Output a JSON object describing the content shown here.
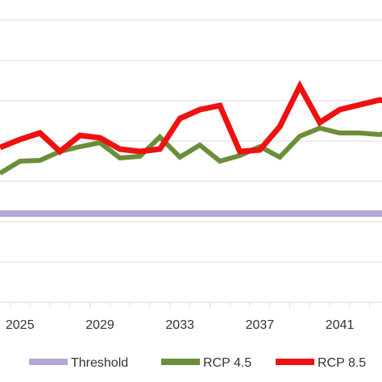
{
  "chart_data": {
    "type": "line",
    "x": [
      2024,
      2025,
      2026,
      2027,
      2028,
      2029,
      2030,
      2031,
      2032,
      2033,
      2034,
      2035,
      2036,
      2037,
      2038,
      2039,
      2040,
      2041,
      2042,
      2043,
      2044
    ],
    "x_tick_labels": [
      "2025",
      "2029",
      "2033",
      "2037",
      "2041"
    ],
    "x_tick_values": [
      2025,
      2029,
      2033,
      2037,
      2041
    ],
    "series": [
      {
        "name": "Threshold",
        "color": "#b4a7d6",
        "values": [
          2.1,
          2.1,
          2.1,
          2.1,
          2.1,
          2.1,
          2.1,
          2.1,
          2.1,
          2.1,
          2.1,
          2.1,
          2.1,
          2.1,
          2.1,
          2.1,
          2.1,
          2.1,
          2.1,
          2.1,
          2.1
        ]
      },
      {
        "name": "RCP 4.5",
        "color": "#6b8e3a",
        "values": [
          2.6,
          2.75,
          2.76,
          2.87,
          2.93,
          2.98,
          2.79,
          2.81,
          3.05,
          2.8,
          2.95,
          2.75,
          2.82,
          2.93,
          2.8,
          3.06,
          3.16,
          3.1,
          3.1,
          3.08,
          3.15
        ]
      },
      {
        "name": "RCP 8.5",
        "color": "#ee1111",
        "values": [
          2.92,
          3.02,
          3.1,
          2.87,
          3.07,
          3.04,
          2.9,
          2.87,
          2.9,
          3.28,
          3.39,
          3.44,
          2.87,
          2.89,
          3.18,
          3.68,
          3.23,
          3.39,
          3.45,
          3.51,
          3.45
        ]
      }
    ],
    "ylim": [
      1.0,
      4.5
    ],
    "gridlines": true,
    "legend": "bottom"
  },
  "legend": {
    "threshold": "Threshold",
    "rcp45": "RCP 4.5",
    "rcp85": "RCP 8.5"
  }
}
